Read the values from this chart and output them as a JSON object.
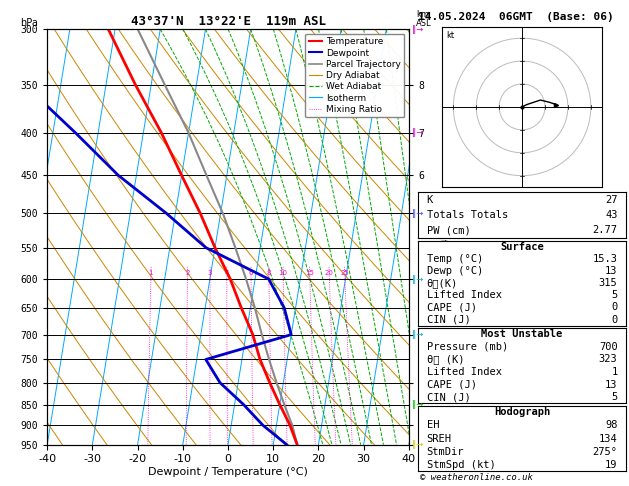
{
  "title_left": "43°37'N  13°22'E  119m ASL",
  "title_right": "14.05.2024  06GMT  (Base: 06)",
  "xlabel": "Dewpoint / Temperature (°C)",
  "temp_color": "#ff0000",
  "dewp_color": "#0000cc",
  "parcel_color": "#888888",
  "dry_adiabat_color": "#cc8800",
  "wet_adiabat_color": "#00aa00",
  "isotherm_color": "#00aaff",
  "mixing_ratio_color": "#ff00cc",
  "stats_K": 27,
  "stats_TT": 43,
  "stats_PW": "2.77",
  "surface_temp": "15.3",
  "surface_dewp": "13",
  "surface_thetae": "315",
  "surface_li": "5",
  "surface_cape": "0",
  "surface_cin": "0",
  "mu_pressure": "700",
  "mu_thetae": "323",
  "mu_li": "1",
  "mu_cape": "13",
  "mu_cin": "5",
  "hodo_EH": "98",
  "hodo_SREH": "134",
  "hodo_StmDir": "275°",
  "hodo_StmSpd": "19",
  "copyright": "© weatheronline.co.uk",
  "pressure_levels": [
    300,
    350,
    400,
    450,
    500,
    550,
    600,
    650,
    700,
    750,
    800,
    850,
    900,
    950
  ],
  "sounding_p": [
    950,
    900,
    850,
    800,
    750,
    700,
    650,
    600,
    550,
    500,
    450,
    400,
    350,
    300
  ],
  "sounding_T": [
    15.3,
    13.0,
    10.0,
    7.0,
    4.0,
    1.5,
    -2.0,
    -5.5,
    -10.0,
    -14.5,
    -20.0,
    -26.0,
    -33.5,
    -41.5
  ],
  "sounding_Td": [
    13.0,
    7.0,
    2.0,
    -4.0,
    -8.0,
    10.0,
    7.5,
    3.0,
    -12.0,
    -22.0,
    -34.0,
    -45.0,
    -58.0,
    -68.0
  ],
  "sounding_par": [
    15.3,
    13.5,
    11.0,
    8.5,
    6.0,
    3.5,
    1.0,
    -2.0,
    -5.5,
    -9.5,
    -14.5,
    -20.0,
    -27.0,
    -35.0
  ],
  "mixing_ratios": [
    1,
    2,
    3,
    4,
    6,
    8,
    10,
    15,
    20,
    25
  ]
}
